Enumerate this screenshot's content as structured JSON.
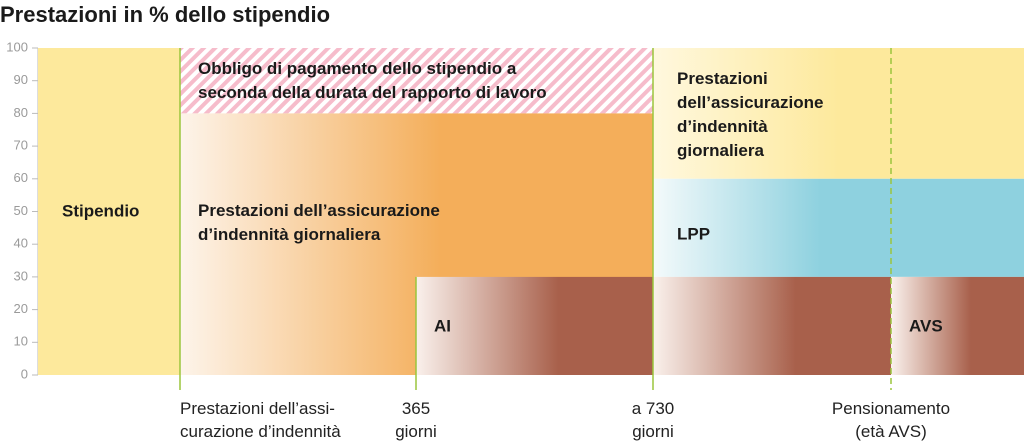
{
  "chart_data": {
    "type": "region",
    "title": "Prestazioni in % dello stipendio",
    "ylim": [
      0,
      100
    ],
    "yticks": [
      0,
      10,
      20,
      30,
      40,
      50,
      60,
      70,
      80,
      90,
      100
    ],
    "regions": [
      {
        "label": "Stipendio",
        "y": [
          0,
          100
        ]
      },
      {
        "label": "Obbligo di pagamento dello stipendio a\nseconda della durata del rapporto di lavoro",
        "y": [
          80,
          100
        ]
      },
      {
        "label": "Prestazioni dell’assicurazione\nd’indennità giornaliera",
        "y": [
          0,
          80
        ]
      },
      {
        "label": "AI",
        "y": [
          0,
          30
        ]
      },
      {
        "label": "Prestazioni\ndell’assicurazione\nd’indennità\ngiornaliera",
        "y": [
          60,
          100
        ]
      },
      {
        "label": "LPP",
        "y": [
          30,
          60
        ]
      },
      {
        "label": null,
        "y": [
          0,
          30
        ]
      },
      {
        "label": "AVS",
        "y": [
          0,
          30
        ]
      }
    ],
    "milestones": [
      "Prestazioni dell’assi-\ncurazione d’indennità",
      "365\ngiorni",
      "a 730\ngiorni",
      "Pensionamento\n(età AVS)"
    ]
  }
}
